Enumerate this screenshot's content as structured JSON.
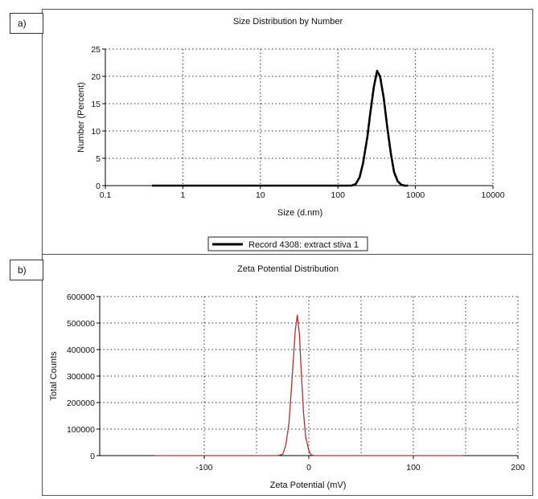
{
  "panel_tags": [
    "a)",
    "b)"
  ],
  "chart_data": [
    {
      "type": "line",
      "title": "Size Distribution by Number",
      "xlabel": "Size (d.nm)",
      "ylabel": "Number (Percent)",
      "x_scale": "log",
      "xlim": [
        0.1,
        10000
      ],
      "ylim": [
        0,
        25
      ],
      "x_ticks": [
        "0.1",
        "1",
        "10",
        "100",
        "1000",
        "10000"
      ],
      "y_ticks": [
        "0",
        "5",
        "10",
        "15",
        "20",
        "25"
      ],
      "grid": true,
      "legend_position": "bottom-center",
      "series": [
        {
          "name": "Record 4308: extract stiva 1",
          "color": "#000000",
          "x": [
            0.4,
            1,
            10,
            100,
            150,
            170,
            190,
            210,
            240,
            260,
            290,
            320,
            350,
            390,
            430,
            480,
            530,
            590,
            650,
            720,
            800
          ],
          "y": [
            0,
            0,
            0,
            0,
            0,
            0.3,
            1.5,
            4,
            9,
            13,
            18,
            21,
            20,
            16,
            11,
            6,
            2.5,
            0.8,
            0.2,
            0,
            0
          ]
        }
      ]
    },
    {
      "type": "line",
      "title": "Zeta Potential Distribution",
      "xlabel": "Zeta Potential (mV)",
      "ylabel": "Total Counts",
      "xlim": [
        -200,
        200
      ],
      "ylim": [
        0,
        600000
      ],
      "x_ticks": [
        "-100",
        "0",
        "100",
        "200"
      ],
      "y_ticks": [
        "0",
        "100000",
        "200000",
        "300000",
        "400000",
        "500000",
        "600000"
      ],
      "grid": true,
      "series": [
        {
          "color": "#b03030",
          "x": [
            -147,
            -30,
            -25,
            -22,
            -19,
            -16,
            -13,
            -11,
            -9,
            -7,
            -5,
            -3,
            0,
            2,
            5,
            147
          ],
          "y": [
            0,
            0,
            5000,
            40000,
            120000,
            290000,
            470000,
            530000,
            460000,
            300000,
            160000,
            70000,
            20000,
            3000,
            0,
            0
          ]
        }
      ]
    }
  ]
}
